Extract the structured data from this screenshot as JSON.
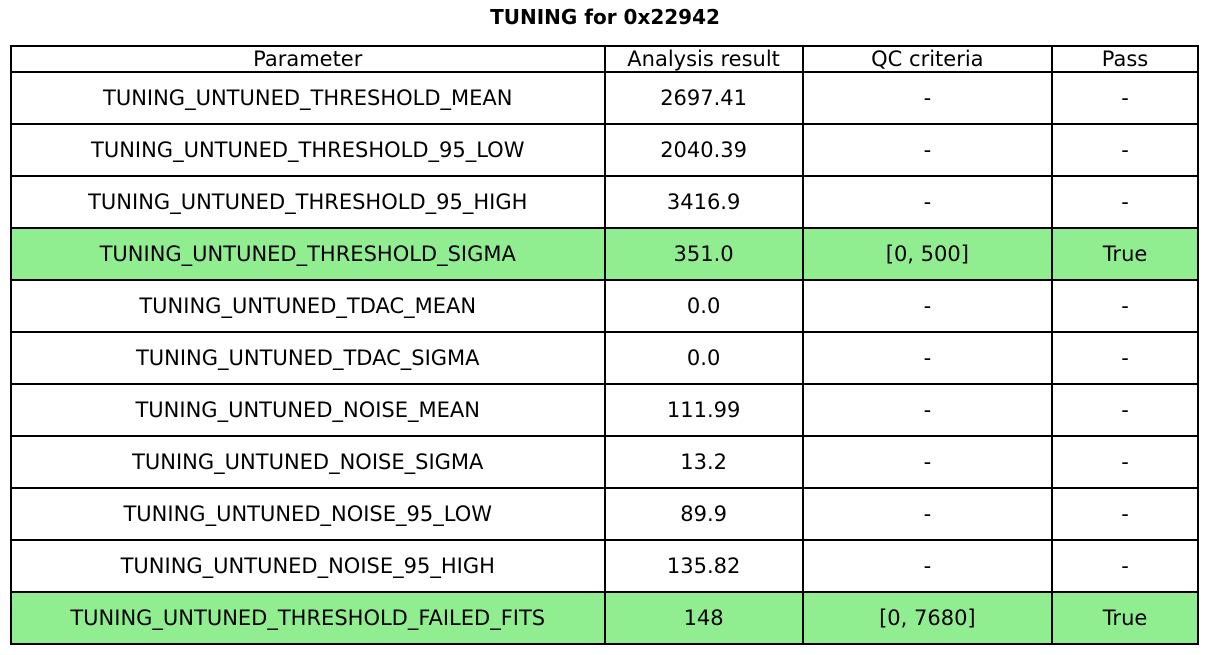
{
  "title": "TUNING for 0x22942",
  "colors": {
    "background": "#FFFFFF",
    "border": "#000000",
    "text": "#000000",
    "row_background": "#FFFFFF",
    "pass_row_background": "#90EE90"
  },
  "chart_data": {
    "type": "table",
    "title": "TUNING for 0x22942",
    "columns": [
      "Parameter",
      "Analysis result",
      "QC criteria",
      "Pass"
    ],
    "column_keys": [
      "parameter",
      "analysis-result",
      "qc-criteria",
      "pass"
    ],
    "col_widths_pct": [
      50.0,
      16.7,
      21.0,
      12.3
    ],
    "rows": [
      {
        "cells": [
          "TUNING_UNTUNED_THRESHOLD_MEAN",
          "2697.41",
          "-",
          "-"
        ],
        "highlighted": false
      },
      {
        "cells": [
          "TUNING_UNTUNED_THRESHOLD_95_LOW",
          "2040.39",
          "-",
          "-"
        ],
        "highlighted": false
      },
      {
        "cells": [
          "TUNING_UNTUNED_THRESHOLD_95_HIGH",
          "3416.9",
          "-",
          "-"
        ],
        "highlighted": false
      },
      {
        "cells": [
          "TUNING_UNTUNED_THRESHOLD_SIGMA",
          "351.0",
          "[0, 500]",
          "True"
        ],
        "highlighted": true
      },
      {
        "cells": [
          "TUNING_UNTUNED_TDAC_MEAN",
          "0.0",
          "-",
          "-"
        ],
        "highlighted": false
      },
      {
        "cells": [
          "TUNING_UNTUNED_TDAC_SIGMA",
          "0.0",
          "-",
          "-"
        ],
        "highlighted": false
      },
      {
        "cells": [
          "TUNING_UNTUNED_NOISE_MEAN",
          "111.99",
          "-",
          "-"
        ],
        "highlighted": false
      },
      {
        "cells": [
          "TUNING_UNTUNED_NOISE_SIGMA",
          "13.2",
          "-",
          "-"
        ],
        "highlighted": false
      },
      {
        "cells": [
          "TUNING_UNTUNED_NOISE_95_LOW",
          "89.9",
          "-",
          "-"
        ],
        "highlighted": false
      },
      {
        "cells": [
          "TUNING_UNTUNED_NOISE_95_HIGH",
          "135.82",
          "-",
          "-"
        ],
        "highlighted": false
      },
      {
        "cells": [
          "TUNING_UNTUNED_THRESHOLD_FAILED_FITS",
          "148",
          "[0, 7680]",
          "True"
        ],
        "highlighted": true
      }
    ],
    "highlighted_rows": [
      3,
      10
    ],
    "highlight_meaning": "QC pass",
    "legend": null,
    "grid": "full-borders"
  }
}
